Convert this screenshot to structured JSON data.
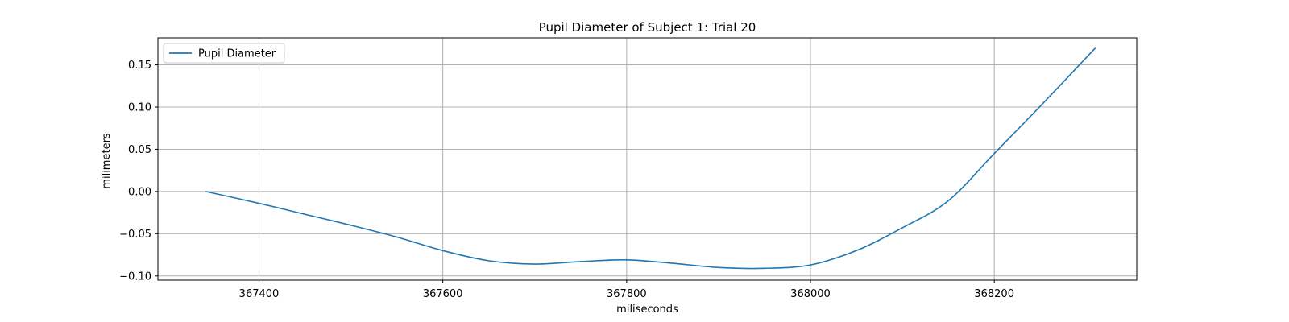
{
  "chart_data": {
    "type": "line",
    "title": "Pupil Diameter of Subject 1: Trial 20",
    "xlabel": "miliseconds",
    "ylabel": "milimeters",
    "xlim": [
      367290,
      368355
    ],
    "ylim": [
      -0.105,
      0.182
    ],
    "xticks": [
      367400,
      367600,
      367800,
      368000,
      368200
    ],
    "yticks": [
      -0.1,
      -0.05,
      0.0,
      0.05,
      0.1,
      0.15
    ],
    "ytick_labels": [
      "−0.10",
      "−0.05",
      "0.00",
      "0.05",
      "0.10",
      "0.15"
    ],
    "xtick_labels": [
      "367400",
      "367600",
      "367800",
      "368000",
      "368200"
    ],
    "grid": true,
    "legend_position": "top-left",
    "series": [
      {
        "name": "Pupil Diameter",
        "color": "#1f77b4",
        "x": [
          367342,
          367400,
          367450,
          367500,
          367550,
          367600,
          367650,
          367700,
          367750,
          367800,
          367850,
          367900,
          367950,
          368000,
          368050,
          368100,
          368150,
          368200,
          368250,
          368310
        ],
        "y": [
          0.0,
          -0.014,
          -0.027,
          -0.04,
          -0.054,
          -0.07,
          -0.082,
          -0.086,
          -0.083,
          -0.081,
          -0.085,
          -0.09,
          -0.091,
          -0.087,
          -0.07,
          -0.043,
          -0.011,
          0.045,
          0.101,
          0.17
        ]
      }
    ]
  }
}
